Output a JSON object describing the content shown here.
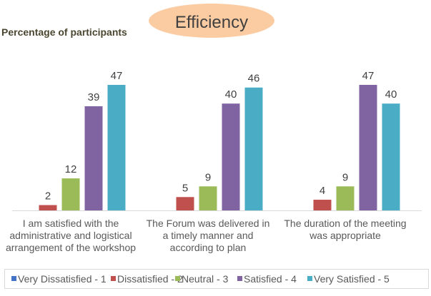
{
  "chart_data": {
    "type": "bar",
    "title": "Efficiency",
    "ylabel": "Percentage of participants",
    "ylim": [
      0,
      50
    ],
    "grid": false,
    "legend_placement": "bottom",
    "categories": [
      [
        "I am satisfied with the",
        "administrative and logistical",
        "arrangement of the workshop"
      ],
      [
        "The Forum was delivered in",
        "a timely manner and",
        "according to plan"
      ],
      [
        "The duration of the meeting",
        "was appropriate"
      ]
    ],
    "series": [
      {
        "name": "Very Dissatisfied - 1",
        "color": "#4472C4",
        "values": [
          0,
          0,
          0
        ]
      },
      {
        "name": "Dissatisfied - 2",
        "color": "#C0504D",
        "values": [
          2,
          5,
          4
        ]
      },
      {
        "name": "Neutral - 3",
        "color": "#9BBB59",
        "values": [
          12,
          9,
          9
        ]
      },
      {
        "name": "Satisfied - 4",
        "color": "#8064A2",
        "values": [
          39,
          40,
          47
        ]
      },
      {
        "name": "Very Satisfied - 5",
        "color": "#4BACC6",
        "values": [
          47,
          46,
          40
        ]
      }
    ],
    "title_badge_color": "#FBCBA2"
  }
}
